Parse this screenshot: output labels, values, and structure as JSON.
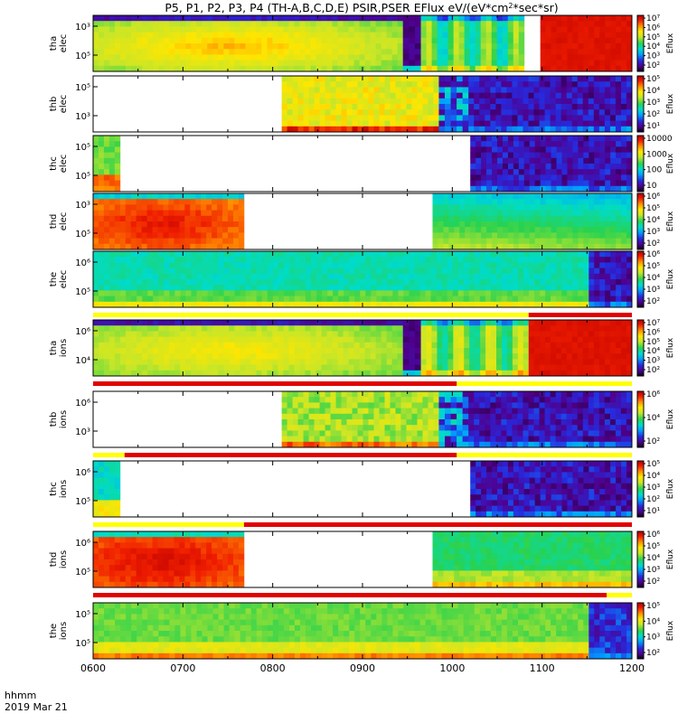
{
  "chart_data": {
    "type": "heatmap",
    "title": "P5, P1, P2, P3, P4 (TH-A,B,C,D,E) PSIR,PSER EFlux eV/(eV*cm²*sec*sr)",
    "title_parts": {
      "main": "P5, P1, P2, P3, P4 (TH-A,B,C,D,E) PSIR,PSER EFlux eV/(eV*cm",
      "sup": "2",
      "tail": "*sec*sr)"
    },
    "x_axis": {
      "ticks": [
        "0600",
        "0700",
        "0800",
        "0900",
        "1000",
        "1100",
        "1200"
      ],
      "range_hours": [
        6,
        12
      ],
      "corner_label": "hhmm",
      "date_label": "2019 Mar 21"
    },
    "colorbar_label": "Eflux",
    "panels": [
      {
        "name": "tha-elec",
        "probe": "tha",
        "species": "elec",
        "ylabel": [
          "tha",
          "elec"
        ],
        "yticks": [
          "10³",
          "10⁵"
        ],
        "cbar_ticks": [
          "10⁷",
          "10⁶",
          "10⁵",
          "10⁴",
          "10³",
          "10²"
        ],
        "cbar_log_range": [
          2,
          7
        ],
        "segments": [
          {
            "from": 6.0,
            "to": 9.45,
            "level": 0.55,
            "pattern": "hot-blob",
            "peak": 0.78
          },
          {
            "from": 9.45,
            "to": 9.65,
            "level": 0.05,
            "pattern": "dark-gap"
          },
          {
            "from": 9.65,
            "to": 10.8,
            "level": 0.5,
            "pattern": "stripes"
          },
          {
            "from": 10.8,
            "to": 10.98,
            "level": null
          },
          {
            "from": 10.98,
            "to": 12.0,
            "level": 0.95,
            "pattern": "flat-red"
          }
        ]
      },
      {
        "name": "thb-elec",
        "probe": "thb",
        "species": "elec",
        "ylabel": [
          "thb",
          "elec"
        ],
        "yticks": [
          "10⁵",
          "10³"
        ],
        "cbar_ticks": [
          "10⁵",
          "10⁴",
          "10³",
          "10²",
          "10¹"
        ],
        "cbar_log_range": [
          1,
          5
        ],
        "segments": [
          {
            "from": 6.0,
            "to": 8.1,
            "level": null
          },
          {
            "from": 8.1,
            "to": 9.85,
            "level": 0.68,
            "pattern": "patchy"
          },
          {
            "from": 9.85,
            "to": 10.18,
            "level": 0.25,
            "pattern": "noise"
          },
          {
            "from": 10.18,
            "to": 12.0,
            "level": 0.05,
            "pattern": "noise-dark"
          }
        ]
      },
      {
        "name": "thc-elec",
        "probe": "thc",
        "species": "elec",
        "ylabel": [
          "thc",
          "elec"
        ],
        "yticks": [
          "10⁵",
          "10⁵"
        ],
        "cbar_ticks": [
          "10000",
          "1000",
          "100",
          "10"
        ],
        "cbar_log_range": [
          0.5,
          4.5
        ],
        "segments": [
          {
            "from": 6.0,
            "to": 6.3,
            "level": 0.6,
            "pattern": "low-warm"
          },
          {
            "from": 6.3,
            "to": 10.2,
            "level": null
          },
          {
            "from": 10.2,
            "to": 12.0,
            "level": 0.05,
            "pattern": "noise-dark"
          }
        ]
      },
      {
        "name": "thd-elec",
        "probe": "thd",
        "species": "elec",
        "ylabel": [
          "thd",
          "elec"
        ],
        "yticks": [
          "10³",
          "10⁵"
        ],
        "cbar_ticks": [
          "10⁶",
          "10⁵",
          "10⁴",
          "10³",
          "10²"
        ],
        "cbar_log_range": [
          1.5,
          6.5
        ],
        "segments": [
          {
            "from": 6.0,
            "to": 7.68,
            "level": 0.82,
            "pattern": "hot-blob",
            "peak": 0.95
          },
          {
            "from": 7.68,
            "to": 9.78,
            "level": null
          },
          {
            "from": 9.78,
            "to": 12.0,
            "level": 0.5,
            "pattern": "gradient-diag"
          }
        ]
      },
      {
        "name": "the-elec",
        "probe": "the",
        "species": "elec",
        "ylabel": [
          "the",
          "elec"
        ],
        "yticks": [
          "10⁶",
          "10⁵"
        ],
        "cbar_ticks": [
          "10⁶",
          "10⁵",
          "10⁴",
          "10³",
          "10²"
        ],
        "cbar_log_range": [
          1.5,
          6.5
        ],
        "segments": [
          {
            "from": 6.0,
            "to": 11.52,
            "level": 0.42,
            "pattern": "layered"
          },
          {
            "from": 11.52,
            "to": 12.0,
            "level": 0.05,
            "pattern": "noise-dark"
          }
        ],
        "status_bar": [
          {
            "from": 6.0,
            "to": 10.85,
            "color": "#ffff00"
          },
          {
            "from": 10.85,
            "to": 12.0,
            "color": "#e00000"
          }
        ]
      },
      {
        "name": "tha-ions",
        "probe": "tha",
        "species": "ions",
        "ylabel": [
          "tha",
          "ions"
        ],
        "yticks": [
          "10⁶",
          "10⁴"
        ],
        "cbar_ticks": [
          "10⁷",
          "10⁶",
          "10⁵",
          "10⁴",
          "10³",
          "10²"
        ],
        "cbar_log_range": [
          1.8,
          7.5
        ],
        "segments": [
          {
            "from": 6.0,
            "to": 9.45,
            "level": 0.55,
            "pattern": "hot-blob",
            "peak": 0.72
          },
          {
            "from": 9.45,
            "to": 9.65,
            "level": 0.05,
            "pattern": "dark-gap"
          },
          {
            "from": 9.65,
            "to": 10.85,
            "level": 0.55,
            "pattern": "stripes"
          },
          {
            "from": 10.85,
            "to": 12.0,
            "level": 0.95,
            "pattern": "flat-red"
          }
        ],
        "status_bar": [
          {
            "from": 6.0,
            "to": 10.05,
            "color": "#e00000"
          },
          {
            "from": 10.05,
            "to": 12.0,
            "color": "#ffff00"
          }
        ]
      },
      {
        "name": "thb-ions",
        "probe": "thb",
        "species": "ions",
        "ylabel": [
          "thb",
          "ions"
        ],
        "yticks": [
          "10⁶",
          "10³"
        ],
        "cbar_ticks": [
          "10⁶",
          "10⁴",
          "10²"
        ],
        "cbar_log_range": [
          1,
          6.5
        ],
        "segments": [
          {
            "from": 6.0,
            "to": 8.1,
            "level": null
          },
          {
            "from": 8.1,
            "to": 9.85,
            "level": 0.6,
            "pattern": "patchy"
          },
          {
            "from": 9.85,
            "to": 10.18,
            "level": 0.25,
            "pattern": "noise"
          },
          {
            "from": 10.18,
            "to": 12.0,
            "level": 0.05,
            "pattern": "noise-dark"
          }
        ],
        "status_bar": [
          {
            "from": 6.0,
            "to": 6.35,
            "color": "#ffff00"
          },
          {
            "from": 6.35,
            "to": 10.05,
            "color": "#e00000"
          },
          {
            "from": 10.05,
            "to": 12.0,
            "color": "#ffff00"
          }
        ]
      },
      {
        "name": "thc-ions",
        "probe": "thc",
        "species": "ions",
        "ylabel": [
          "thc",
          "ions"
        ],
        "yticks": [
          "10⁶",
          "10⁵"
        ],
        "cbar_ticks": [
          "10⁵",
          "10⁴",
          "10³",
          "10²",
          "10¹"
        ],
        "cbar_log_range": [
          0.5,
          5.5
        ],
        "segments": [
          {
            "from": 6.0,
            "to": 6.3,
            "level": 0.45,
            "pattern": "low-warm"
          },
          {
            "from": 6.3,
            "to": 10.2,
            "level": null
          },
          {
            "from": 10.2,
            "to": 12.0,
            "level": 0.05,
            "pattern": "noise-dark"
          }
        ],
        "status_bar": [
          {
            "from": 6.0,
            "to": 7.68,
            "color": "#ffff00"
          },
          {
            "from": 7.68,
            "to": 12.0,
            "color": "#e00000"
          }
        ]
      },
      {
        "name": "thd-ions",
        "probe": "thd",
        "species": "ions",
        "ylabel": [
          "thd",
          "ions"
        ],
        "yticks": [
          "10⁶",
          "10⁵"
        ],
        "cbar_ticks": [
          "10⁶",
          "10⁵",
          "10⁴",
          "10³",
          "10²"
        ],
        "cbar_log_range": [
          1.5,
          6.5
        ],
        "segments": [
          {
            "from": 6.0,
            "to": 7.68,
            "level": 0.85,
            "pattern": "hot-blob",
            "peak": 0.97
          },
          {
            "from": 7.68,
            "to": 9.78,
            "level": null
          },
          {
            "from": 9.78,
            "to": 12.0,
            "level": 0.48,
            "pattern": "layered"
          }
        ],
        "status_bar": [
          {
            "from": 6.0,
            "to": 11.72,
            "color": "#e00000"
          },
          {
            "from": 11.72,
            "to": 12.0,
            "color": "#ffff00"
          }
        ]
      },
      {
        "name": "the-ions",
        "probe": "the",
        "species": "ions",
        "ylabel": [
          "the",
          "ions"
        ],
        "yticks": [
          "10⁵",
          "10⁵"
        ],
        "cbar_ticks": [
          "10⁵",
          "10⁴",
          "10³",
          "10²"
        ],
        "cbar_log_range": [
          1.5,
          5.5
        ],
        "segments": [
          {
            "from": 6.0,
            "to": 11.52,
            "level": 0.55,
            "pattern": "layered"
          },
          {
            "from": 11.52,
            "to": 12.0,
            "level": 0.1,
            "pattern": "noise-dark"
          }
        ]
      }
    ]
  }
}
